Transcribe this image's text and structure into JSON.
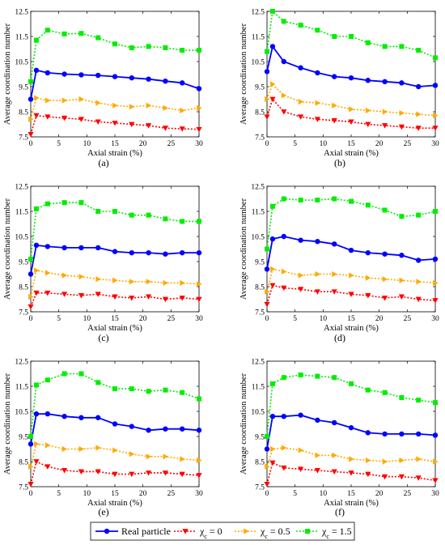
{
  "legend": {
    "items": [
      {
        "key": "real",
        "label": "Real particle",
        "color": "#0000ff",
        "marker": "circle",
        "dash": ""
      },
      {
        "key": "xc0",
        "label": "χ",
        "sub": "c",
        "suffix": " = 0",
        "color": "#ff0000",
        "marker": "triangle-down",
        "dash": "2,2"
      },
      {
        "key": "xc05",
        "label": "χ",
        "sub": "c",
        "suffix": " = 0.5",
        "color": "#ffaa00",
        "marker": "triangle-right",
        "dash": "2,2"
      },
      {
        "key": "xc15",
        "label": "χ",
        "sub": "c",
        "suffix": " = 1.5",
        "color": "#00ee00",
        "marker": "square",
        "dash": "2,2"
      }
    ]
  },
  "chart_data": [
    {
      "type": "line",
      "panel_label": "(a)",
      "x_label": "Axial strain (%)",
      "y_label": "Average coordination number",
      "xlim": [
        0,
        30
      ],
      "ylim": [
        7.5,
        12.5
      ],
      "xticks": [
        "0",
        "5",
        "10",
        "15",
        "20",
        "25",
        "30"
      ],
      "yticks": [
        "7.5",
        "8.5",
        "9.5",
        "10.5",
        "11.5",
        "12.5"
      ],
      "x": [
        0,
        1,
        3,
        6,
        9,
        12,
        15,
        18,
        21,
        24,
        27,
        30
      ],
      "series": [
        {
          "key": "real",
          "values": [
            9.0,
            10.15,
            10.05,
            10.0,
            9.97,
            9.95,
            9.9,
            9.85,
            9.8,
            9.72,
            9.65,
            9.42
          ]
        },
        {
          "key": "xc0",
          "values": [
            7.6,
            8.35,
            8.3,
            8.25,
            8.2,
            8.1,
            8.05,
            8.0,
            7.95,
            7.85,
            7.82,
            7.8
          ]
        },
        {
          "key": "xc05",
          "values": [
            8.2,
            9.05,
            8.95,
            8.95,
            9.0,
            8.85,
            8.75,
            8.7,
            8.75,
            8.65,
            8.55,
            8.65
          ]
        },
        {
          "key": "xc15",
          "values": [
            9.7,
            11.35,
            11.75,
            11.6,
            11.62,
            11.45,
            11.2,
            11.05,
            11.1,
            11.05,
            10.95,
            10.95
          ]
        }
      ]
    },
    {
      "type": "line",
      "panel_label": "(b)",
      "x_label": "Axial strain (%)",
      "y_label": "Average coordination number",
      "xlim": [
        0,
        30
      ],
      "ylim": [
        7.5,
        12.5
      ],
      "xticks": [
        "0",
        "5",
        "10",
        "15",
        "20",
        "25",
        "30"
      ],
      "yticks": [
        "7.5",
        "8.5",
        "9.5",
        "10.5",
        "11.5",
        "12.5"
      ],
      "x": [
        0,
        1,
        3,
        6,
        9,
        12,
        15,
        18,
        21,
        24,
        27,
        30
      ],
      "series": [
        {
          "key": "real",
          "values": [
            10.1,
            11.1,
            10.5,
            10.25,
            10.05,
            9.9,
            9.85,
            9.75,
            9.7,
            9.65,
            9.5,
            9.55
          ]
        },
        {
          "key": "xc0",
          "values": [
            8.3,
            9.0,
            8.5,
            8.3,
            8.2,
            8.15,
            8.1,
            8.0,
            7.95,
            7.9,
            7.85,
            7.85
          ]
        },
        {
          "key": "xc05",
          "values": [
            9.0,
            9.6,
            9.15,
            8.9,
            8.85,
            8.75,
            8.6,
            8.55,
            8.5,
            8.45,
            8.4,
            8.35
          ]
        },
        {
          "key": "xc15",
          "values": [
            10.9,
            12.5,
            12.1,
            11.95,
            11.75,
            11.5,
            11.5,
            11.25,
            11.1,
            11.1,
            10.95,
            10.65
          ]
        }
      ]
    },
    {
      "type": "line",
      "panel_label": "(c)",
      "x_label": "Axial strain (%)",
      "y_label": "Average coordination number",
      "xlim": [
        0,
        30
      ],
      "ylim": [
        7.5,
        12.5
      ],
      "xticks": [
        "0",
        "5",
        "10",
        "15",
        "20",
        "25",
        "30"
      ],
      "yticks": [
        "7.5",
        "8.5",
        "9.5",
        "10.5",
        "11.5",
        "12.5"
      ],
      "x": [
        0,
        1,
        3,
        6,
        9,
        12,
        15,
        18,
        21,
        24,
        27,
        30
      ],
      "series": [
        {
          "key": "real",
          "values": [
            9.0,
            10.15,
            10.1,
            10.05,
            10.05,
            10.05,
            9.9,
            9.85,
            9.85,
            9.8,
            9.85,
            9.85
          ]
        },
        {
          "key": "xc0",
          "values": [
            7.7,
            8.25,
            8.25,
            8.2,
            8.15,
            8.2,
            8.1,
            8.05,
            8.1,
            8.0,
            8.05,
            8.0
          ]
        },
        {
          "key": "xc05",
          "values": [
            8.1,
            9.15,
            9.05,
            8.95,
            8.9,
            8.8,
            8.75,
            8.7,
            8.7,
            8.65,
            8.65,
            8.6
          ]
        },
        {
          "key": "xc15",
          "values": [
            9.6,
            11.6,
            11.8,
            11.85,
            11.85,
            11.5,
            11.5,
            11.35,
            11.35,
            11.2,
            11.1,
            11.1
          ]
        }
      ]
    },
    {
      "type": "line",
      "panel_label": "(d)",
      "x_label": "Axial strain (%)",
      "y_label": "Average coordination number",
      "xlim": [
        0,
        30
      ],
      "ylim": [
        7.5,
        12.5
      ],
      "xticks": [
        "0",
        "5",
        "10",
        "15",
        "20",
        "25",
        "30"
      ],
      "yticks": [
        "7.5",
        "8.5",
        "9.5",
        "10.5",
        "11.5",
        "12.5"
      ],
      "x": [
        0,
        1,
        3,
        6,
        9,
        12,
        15,
        18,
        21,
        24,
        27,
        30
      ],
      "series": [
        {
          "key": "real",
          "values": [
            9.2,
            10.4,
            10.5,
            10.35,
            10.3,
            10.2,
            9.95,
            9.85,
            9.8,
            9.75,
            9.55,
            9.6
          ]
        },
        {
          "key": "xc0",
          "values": [
            7.8,
            8.55,
            8.45,
            8.4,
            8.3,
            8.3,
            8.2,
            8.15,
            8.05,
            8.1,
            8.0,
            7.95
          ]
        },
        {
          "key": "xc05",
          "values": [
            8.3,
            9.2,
            9.1,
            8.95,
            9.0,
            9.0,
            8.95,
            8.85,
            8.8,
            8.75,
            8.7,
            8.65
          ]
        },
        {
          "key": "xc15",
          "values": [
            10.0,
            11.7,
            12.0,
            11.95,
            11.95,
            12.0,
            11.9,
            11.75,
            11.55,
            11.3,
            11.35,
            11.5
          ]
        }
      ]
    },
    {
      "type": "line",
      "panel_label": "(e)",
      "x_label": "Axial strain (%)",
      "y_label": "Average coordination number",
      "xlim": [
        0,
        30
      ],
      "ylim": [
        7.5,
        12.5
      ],
      "xticks": [
        "0",
        "5",
        "10",
        "15",
        "20",
        "25",
        "30"
      ],
      "yticks": [
        "7.5",
        "8.5",
        "9.5",
        "10.5",
        "11.5",
        "12.5"
      ],
      "x": [
        0,
        1,
        3,
        6,
        9,
        12,
        15,
        18,
        21,
        24,
        27,
        30
      ],
      "series": [
        {
          "key": "real",
          "values": [
            9.2,
            10.4,
            10.4,
            10.3,
            10.25,
            10.25,
            10.0,
            9.9,
            9.75,
            9.8,
            9.8,
            9.75
          ]
        },
        {
          "key": "xc0",
          "values": [
            7.6,
            8.5,
            8.3,
            8.15,
            8.1,
            8.1,
            8.0,
            8.0,
            8.05,
            8.05,
            8.0,
            7.95
          ]
        },
        {
          "key": "xc05",
          "values": [
            8.3,
            9.2,
            9.15,
            9.0,
            9.0,
            9.05,
            8.95,
            8.8,
            8.7,
            8.7,
            8.6,
            8.55
          ]
        },
        {
          "key": "xc15",
          "values": [
            9.5,
            11.55,
            11.75,
            12.0,
            12.0,
            11.65,
            11.4,
            11.4,
            11.3,
            11.35,
            11.25,
            11.0
          ]
        }
      ]
    },
    {
      "type": "line",
      "panel_label": "(f)",
      "x_label": "Axial strain (%)",
      "y_label": "Average coordination number",
      "xlim": [
        0,
        30
      ],
      "ylim": [
        7.5,
        12.5
      ],
      "xticks": [
        "0",
        "5",
        "10",
        "15",
        "20",
        "25",
        "30"
      ],
      "yticks": [
        "7.5",
        "8.5",
        "9.5",
        "10.5",
        "11.5",
        "12.5"
      ],
      "x": [
        0,
        1,
        3,
        6,
        9,
        12,
        15,
        18,
        21,
        24,
        27,
        30
      ],
      "series": [
        {
          "key": "real",
          "values": [
            9.0,
            10.3,
            10.3,
            10.35,
            10.15,
            10.05,
            9.85,
            9.65,
            9.6,
            9.6,
            9.6,
            9.55
          ]
        },
        {
          "key": "xc0",
          "values": [
            7.6,
            8.45,
            8.25,
            8.2,
            8.15,
            8.1,
            8.05,
            8.0,
            7.9,
            7.9,
            7.85,
            7.75
          ]
        },
        {
          "key": "xc05",
          "values": [
            8.3,
            9.0,
            9.05,
            8.95,
            8.75,
            8.75,
            8.6,
            8.55,
            8.5,
            8.55,
            8.6,
            8.5
          ]
        },
        {
          "key": "xc15",
          "values": [
            9.5,
            11.6,
            11.85,
            11.95,
            11.9,
            11.85,
            11.6,
            11.35,
            11.25,
            11.05,
            10.95,
            10.85
          ]
        }
      ]
    }
  ]
}
